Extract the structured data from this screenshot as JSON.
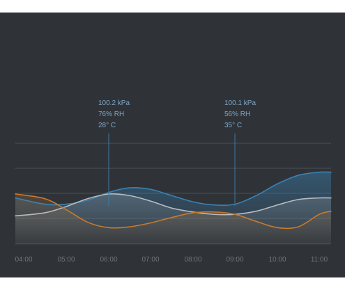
{
  "colors": {
    "background": "#2f3338",
    "pressure": "#3a82b3",
    "humidity": "#b8bcc1",
    "temperature": "#c87a2d",
    "readout_text": "#7fa6c6",
    "grid": "#4a5057",
    "tick_text": "#6f757c"
  },
  "chart_data": {
    "type": "line",
    "title": "",
    "xlabel": "",
    "ylabel": "",
    "x": [
      "04:00",
      "05:00",
      "06:00",
      "07:00",
      "08:00",
      "09:00",
      "10:00",
      "11:00"
    ],
    "grid": true,
    "legend": "none",
    "series": [
      {
        "key": "pressure",
        "x": [
          "04:00",
          "04:30",
          "05:00",
          "05:30",
          "06:00",
          "06:30",
          "07:00",
          "07:30",
          "08:00",
          "08:30",
          "09:00",
          "09:30",
          "10:00",
          "10:30",
          "11:00",
          "11:15"
        ],
        "values": [
          0.25,
          0.17,
          0.17,
          0.22,
          0.32,
          0.38,
          0.36,
          0.28,
          0.2,
          0.16,
          0.17,
          0.28,
          0.43,
          0.54,
          0.58,
          0.58
        ]
      },
      {
        "key": "humidity",
        "x": [
          "04:00",
          "04:30",
          "05:00",
          "05:30",
          "06:00",
          "06:30",
          "07:00",
          "07:30",
          "08:00",
          "08:30",
          "09:00",
          "09:30",
          "10:00",
          "10:30",
          "11:00",
          "11:15"
        ],
        "values": [
          0.02,
          0.06,
          0.14,
          0.24,
          0.3,
          0.28,
          0.21,
          0.12,
          0.07,
          0.04,
          0.04,
          0.08,
          0.16,
          0.23,
          0.25,
          0.25
        ]
      },
      {
        "key": "temperature",
        "x": [
          "04:00",
          "04:30",
          "05:00",
          "05:30",
          "06:00",
          "06:30",
          "07:00",
          "07:30",
          "08:00",
          "08:30",
          "09:00",
          "09:30",
          "10:00",
          "10:30",
          "11:00",
          "11:15"
        ],
        "values": [
          0.3,
          0.24,
          0.1,
          -0.06,
          -0.13,
          -0.12,
          -0.07,
          0.0,
          0.06,
          0.07,
          0.04,
          -0.05,
          -0.13,
          -0.12,
          0.04,
          0.08
        ]
      }
    ],
    "annotations": [
      {
        "x": "06:00",
        "lines": [
          "100.2 kPa",
          "76% RH",
          "28° C"
        ]
      },
      {
        "x": "09:00",
        "lines": [
          "100.1 kPa",
          "56% RH",
          "35° C"
        ]
      }
    ]
  }
}
